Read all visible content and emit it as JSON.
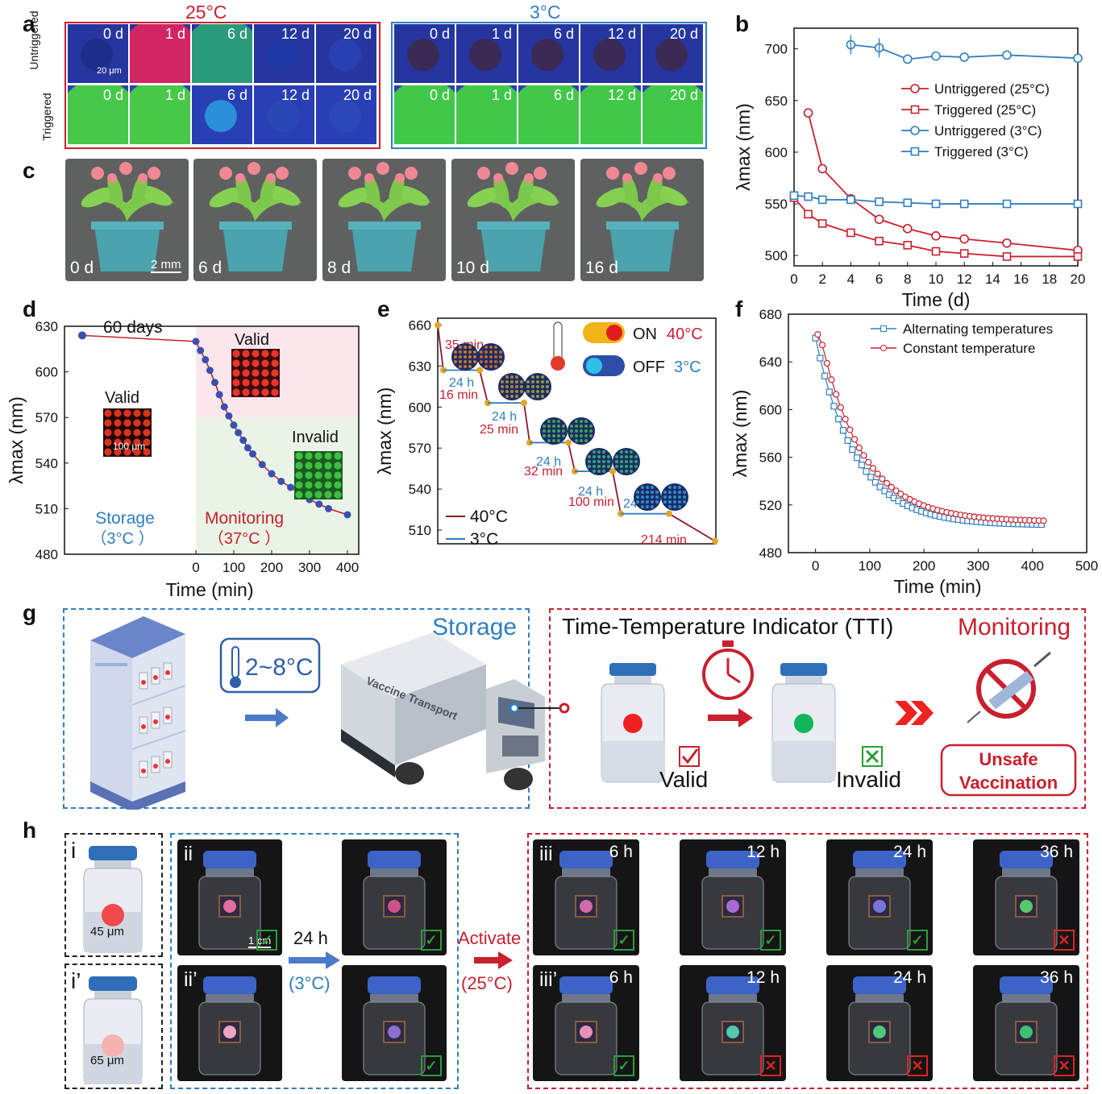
{
  "panel_labels": {
    "a": "a",
    "b": "b",
    "c": "c",
    "d": "d",
    "e": "e",
    "f": "f",
    "g": "g",
    "h": "h"
  },
  "panel_a": {
    "temp_left": "25°C",
    "temp_right": "3°C",
    "row_untriggered": "Untriggered",
    "row_triggered": "Triggered",
    "days": [
      "0 d",
      "1 d",
      "6 d",
      "12 d",
      "20 d"
    ],
    "scale": "20 μm",
    "frame_left_color": "#c8202e",
    "frame_right_color": "#2f7ec0"
  },
  "panel_c": {
    "days": [
      "0 d",
      "6 d",
      "8 d",
      "10 d",
      "16 d"
    ],
    "scale": "2 mm"
  },
  "chart_data": [
    {
      "panel": "b",
      "type": "line",
      "xlabel": "Time (d)",
      "ylabel": "λmax (nm)",
      "xlim": [
        0,
        20
      ],
      "ylim": [
        490,
        720
      ],
      "xticks": [
        "0",
        "2",
        "4",
        "6",
        "8",
        "10",
        "12",
        "14",
        "16",
        "18",
        "20"
      ],
      "yticks": [
        "500",
        "550",
        "600",
        "650",
        "700"
      ],
      "legend_position": "top-right",
      "series": [
        {
          "name": "Untriggered (25°C)",
          "marker": "circle",
          "color": "#c8202e",
          "x": [
            1,
            2,
            4,
            6,
            8,
            10,
            12,
            15,
            20
          ],
          "y": [
            638,
            584,
            555,
            535,
            526,
            519,
            516,
            512,
            505
          ]
        },
        {
          "name": "Triggered (25°C)",
          "marker": "square",
          "color": "#c8202e",
          "x": [
            0,
            1,
            2,
            4,
            6,
            8,
            10,
            12,
            15,
            20
          ],
          "y": [
            556,
            540,
            531,
            522,
            514,
            510,
            504,
            502,
            499,
            499
          ]
        },
        {
          "name": "Untriggered (3°C)",
          "marker": "circle",
          "color": "#2f7ec0",
          "x": [
            4,
            6,
            8,
            10,
            12,
            15,
            20
          ],
          "y": [
            704,
            701,
            690,
            693,
            692,
            694,
            691
          ]
        },
        {
          "name": "Triggered (3°C)",
          "marker": "square",
          "color": "#2f7ec0",
          "x": [
            0,
            1,
            2,
            4,
            6,
            8,
            10,
            12,
            15,
            20
          ],
          "y": [
            558,
            557,
            554,
            554,
            552,
            551,
            550,
            550,
            550,
            550
          ]
        }
      ]
    },
    {
      "panel": "d",
      "type": "line",
      "xlabel": "Time (min)",
      "ylabel": "λmax (nm)",
      "xlim": [
        0,
        400
      ],
      "ylim": [
        480,
        630
      ],
      "xticks": [
        "0",
        "100",
        "200",
        "300",
        "400"
      ],
      "yticks": [
        "480",
        "510",
        "540",
        "570",
        "600",
        "630"
      ],
      "storage_point": 624,
      "storage_label": "60 days",
      "series": [
        {
          "name": "",
          "color": "#c8202e",
          "x": [
            0,
            12,
            25,
            37,
            50,
            62,
            75,
            87,
            100,
            112,
            125,
            137,
            150,
            175,
            200,
            225,
            250,
            275,
            300,
            325,
            350,
            400
          ],
          "y": [
            620,
            614,
            608,
            601,
            593,
            585,
            577,
            571,
            565,
            560,
            555,
            550,
            546,
            539,
            533,
            528,
            524,
            520,
            516,
            513,
            510,
            506
          ]
        }
      ],
      "annotations": {
        "valid_top": "Valid",
        "valid_left": "Valid",
        "invalid": "Invalid",
        "scale": "100 μm",
        "storage": "Storage",
        "storage_temp": "（3°C ）",
        "monitoring": "Monitoring",
        "monitoring_temp": "（37°C ）"
      }
    },
    {
      "panel": "e",
      "type": "line",
      "ylabel": "λmax (nm)",
      "ylim": [
        500,
        665
      ],
      "yticks": [
        "510",
        "540",
        "570",
        "600",
        "630",
        "660"
      ],
      "legend": [
        "40°C",
        "3°C"
      ],
      "legend_colors": [
        "#8b1a2b",
        "#2f7ec0"
      ],
      "hot_durations": [
        "35 min",
        "16 min",
        "25 min",
        "32 min",
        "100 min",
        "214 min"
      ],
      "cold_duration": "24 h",
      "switch_on": "ON",
      "switch_on_temp": "40°C",
      "switch_off": "OFF",
      "switch_off_temp": "3°C",
      "steps": [
        [
          660,
          627
        ],
        [
          627,
          603
        ],
        [
          603,
          574
        ],
        [
          574,
          553
        ],
        [
          553,
          522
        ],
        [
          522,
          502
        ]
      ]
    },
    {
      "panel": "f",
      "type": "line",
      "xlabel": "Time (min)",
      "ylabel": "λmax (nm)",
      "xlim": [
        -50,
        500
      ],
      "ylim": [
        480,
        680
      ],
      "xticks": [
        "0",
        "100",
        "200",
        "300",
        "400",
        "500"
      ],
      "yticks": [
        "480",
        "520",
        "560",
        "600",
        "640",
        "680"
      ],
      "legend_position": "top-right",
      "series": [
        {
          "name": "Alternating temperatures",
          "marker": "square",
          "color": "#2f7ec0"
        },
        {
          "name": "Constant temperature",
          "marker": "circle",
          "color": "#c8202e"
        }
      ]
    }
  ],
  "panel_g": {
    "storage": "Storage",
    "temp_range": "2~8°C",
    "truck_text": "Vaccine Transport",
    "tti_title": "Time-Temperature Indicator (TTI)",
    "monitoring": "Monitoring",
    "valid": "Valid",
    "invalid": "Invalid",
    "unsafe_line1": "Unsafe",
    "unsafe_line2": "Vaccination"
  },
  "panel_h": {
    "i": "i",
    "i_size": "45 μm",
    "i_prime": "i’",
    "i_prime_size": "65 μm",
    "ii": "ii",
    "ii_prime": "ii’",
    "scale": "1 cm",
    "storage_time": "24 h",
    "storage_temp": "(3°C)",
    "activate": "Activate",
    "activate_temp": "(25°C)",
    "iii": "iii",
    "iii_prime": "iii’",
    "times": [
      "6 h",
      "12 h",
      "24 h",
      "36 h"
    ]
  }
}
